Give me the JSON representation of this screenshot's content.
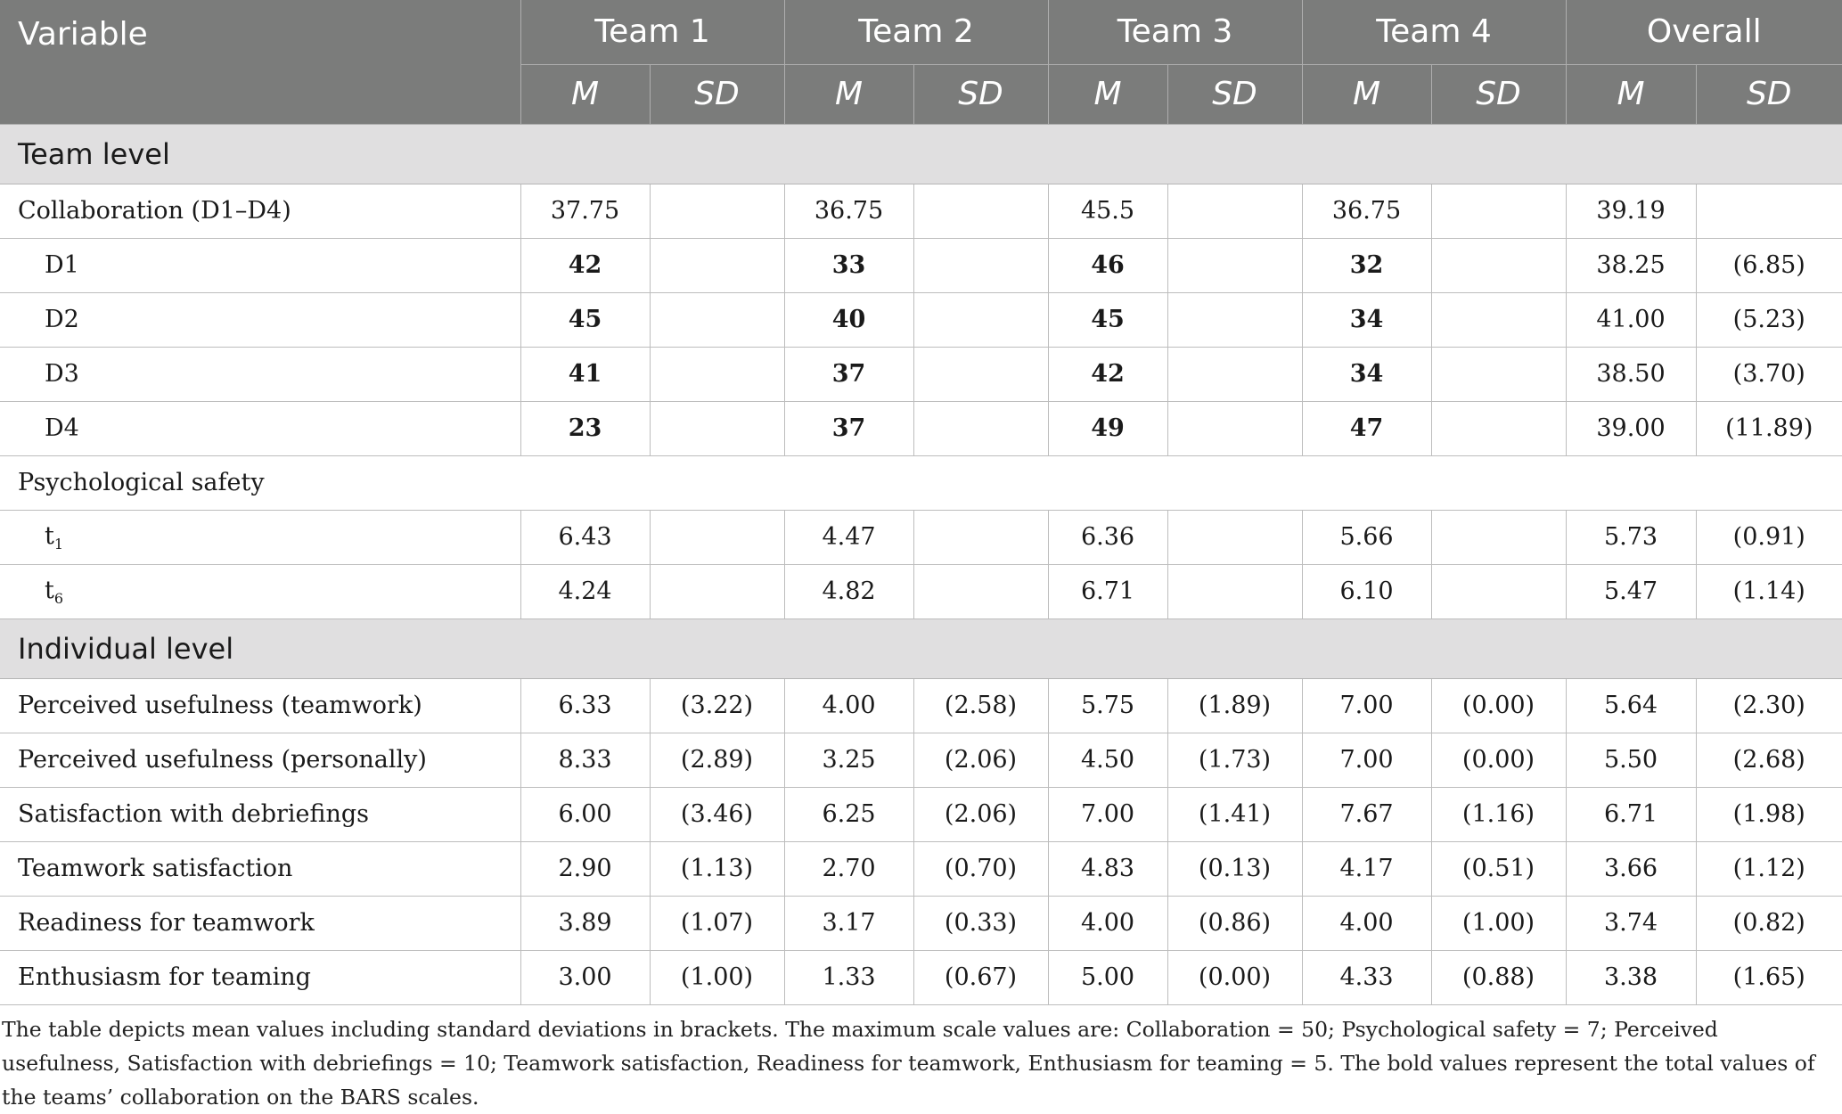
{
  "header": {
    "variable": "Variable",
    "groups": [
      "Team 1",
      "Team 2",
      "Team 3",
      "Team 4",
      "Overall"
    ],
    "m": "M",
    "sd": "SD"
  },
  "sections": {
    "team_level": "Team level",
    "individual_level": "Individual level"
  },
  "team_rows": [
    {
      "label": "Collaboration (D1–D4)",
      "bold": false,
      "indent": false,
      "values": [
        "37.75",
        "",
        "36.75",
        "",
        "45.5",
        "",
        "36.75",
        "",
        "39.19",
        ""
      ]
    },
    {
      "label": "D1",
      "bold": true,
      "indent": true,
      "values": [
        "42",
        "",
        "33",
        "",
        "46",
        "",
        "32",
        "",
        "38.25",
        "(6.85)"
      ]
    },
    {
      "label": "D2",
      "bold": true,
      "indent": true,
      "values": [
        "45",
        "",
        "40",
        "",
        "45",
        "",
        "34",
        "",
        "41.00",
        "(5.23)"
      ]
    },
    {
      "label": "D3",
      "bold": true,
      "indent": true,
      "values": [
        "41",
        "",
        "37",
        "",
        "42",
        "",
        "34",
        "",
        "38.50",
        "(3.70)"
      ]
    },
    {
      "label": "D4",
      "bold": true,
      "indent": true,
      "values": [
        "23",
        "",
        "37",
        "",
        "49",
        "",
        "47",
        "",
        "39.00",
        "(11.89)"
      ]
    }
  ],
  "psych_label": "Psychological safety",
  "psych_rows": [
    {
      "label": "t",
      "sub": "1",
      "values": [
        "6.43",
        "",
        "4.47",
        "",
        "6.36",
        "",
        "5.66",
        "",
        "5.73",
        "(0.91)"
      ]
    },
    {
      "label": "t",
      "sub": "6",
      "values": [
        "4.24",
        "",
        "4.82",
        "",
        "6.71",
        "",
        "6.10",
        "",
        "5.47",
        "(1.14)"
      ]
    }
  ],
  "individual_rows": [
    {
      "label": "Perceived usefulness (teamwork)",
      "values": [
        "6.33",
        "(3.22)",
        "4.00",
        "(2.58)",
        "5.75",
        "(1.89)",
        "7.00",
        "(0.00)",
        "5.64",
        "(2.30)"
      ]
    },
    {
      "label": "Perceived usefulness (personally)",
      "values": [
        "8.33",
        "(2.89)",
        "3.25",
        "(2.06)",
        "4.50",
        "(1.73)",
        "7.00",
        "(0.00)",
        "5.50",
        "(2.68)"
      ]
    },
    {
      "label": "Satisfaction with debriefings",
      "values": [
        "6.00",
        "(3.46)",
        "6.25",
        "(2.06)",
        "7.00",
        "(1.41)",
        "7.67",
        "(1.16)",
        "6.71",
        "(1.98)"
      ]
    },
    {
      "label": "Teamwork satisfaction",
      "values": [
        "2.90",
        "(1.13)",
        "2.70",
        "(0.70)",
        "4.83",
        "(0.13)",
        "4.17",
        "(0.51)",
        "3.66",
        "(1.12)"
      ]
    },
    {
      "label": "Readiness for teamwork",
      "values": [
        "3.89",
        "(1.07)",
        "3.17",
        "(0.33)",
        "4.00",
        "(0.86)",
        "4.00",
        "(1.00)",
        "3.74",
        "(0.82)"
      ]
    },
    {
      "label": "Enthusiasm for teaming",
      "values": [
        "3.00",
        "(1.00)",
        "1.33",
        "(0.67)",
        "5.00",
        "(0.00)",
        "4.33",
        "(0.88)",
        "3.38",
        "(1.65)"
      ]
    }
  ],
  "footnote": "The table depicts mean values including standard deviations in brackets. The maximum scale values are: Collaboration = 50; Psychological safety = 7; Perceived usefulness, Satisfaction with debriefings = 10; Teamwork satisfaction, Readiness for teamwork, Enthusiasm for teaming = 5. The bold values represent the total values of the teams’ collaboration on the BARS scales."
}
